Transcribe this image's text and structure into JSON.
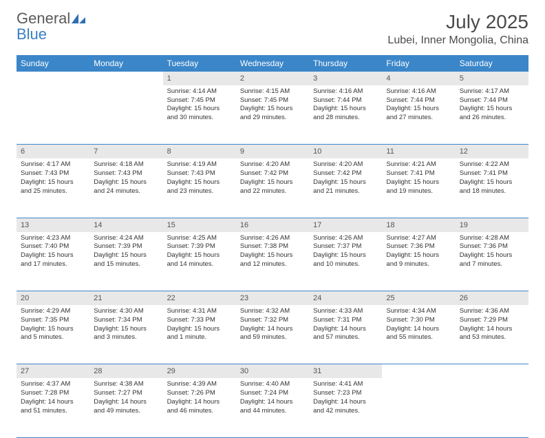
{
  "brand": {
    "part1": "General",
    "part2": "Blue"
  },
  "title": "July 2025",
  "location": "Lubei, Inner Mongolia, China",
  "colors": {
    "header_bg": "#3b86c9",
    "header_text": "#ffffff",
    "daynum_bg": "#e8e8e8",
    "border": "#3b86c9",
    "logo_gray": "#5a5a5a",
    "logo_blue": "#3b7fc4"
  },
  "weekdays": [
    "Sunday",
    "Monday",
    "Tuesday",
    "Wednesday",
    "Thursday",
    "Friday",
    "Saturday"
  ],
  "weeks": [
    {
      "nums": [
        "",
        "",
        "1",
        "2",
        "3",
        "4",
        "5"
      ],
      "cells": [
        null,
        null,
        {
          "sunrise": "Sunrise: 4:14 AM",
          "sunset": "Sunset: 7:45 PM",
          "day1": "Daylight: 15 hours",
          "day2": "and 30 minutes."
        },
        {
          "sunrise": "Sunrise: 4:15 AM",
          "sunset": "Sunset: 7:45 PM",
          "day1": "Daylight: 15 hours",
          "day2": "and 29 minutes."
        },
        {
          "sunrise": "Sunrise: 4:16 AM",
          "sunset": "Sunset: 7:44 PM",
          "day1": "Daylight: 15 hours",
          "day2": "and 28 minutes."
        },
        {
          "sunrise": "Sunrise: 4:16 AM",
          "sunset": "Sunset: 7:44 PM",
          "day1": "Daylight: 15 hours",
          "day2": "and 27 minutes."
        },
        {
          "sunrise": "Sunrise: 4:17 AM",
          "sunset": "Sunset: 7:44 PM",
          "day1": "Daylight: 15 hours",
          "day2": "and 26 minutes."
        }
      ]
    },
    {
      "nums": [
        "6",
        "7",
        "8",
        "9",
        "10",
        "11",
        "12"
      ],
      "cells": [
        {
          "sunrise": "Sunrise: 4:17 AM",
          "sunset": "Sunset: 7:43 PM",
          "day1": "Daylight: 15 hours",
          "day2": "and 25 minutes."
        },
        {
          "sunrise": "Sunrise: 4:18 AM",
          "sunset": "Sunset: 7:43 PM",
          "day1": "Daylight: 15 hours",
          "day2": "and 24 minutes."
        },
        {
          "sunrise": "Sunrise: 4:19 AM",
          "sunset": "Sunset: 7:43 PM",
          "day1": "Daylight: 15 hours",
          "day2": "and 23 minutes."
        },
        {
          "sunrise": "Sunrise: 4:20 AM",
          "sunset": "Sunset: 7:42 PM",
          "day1": "Daylight: 15 hours",
          "day2": "and 22 minutes."
        },
        {
          "sunrise": "Sunrise: 4:20 AM",
          "sunset": "Sunset: 7:42 PM",
          "day1": "Daylight: 15 hours",
          "day2": "and 21 minutes."
        },
        {
          "sunrise": "Sunrise: 4:21 AM",
          "sunset": "Sunset: 7:41 PM",
          "day1": "Daylight: 15 hours",
          "day2": "and 19 minutes."
        },
        {
          "sunrise": "Sunrise: 4:22 AM",
          "sunset": "Sunset: 7:41 PM",
          "day1": "Daylight: 15 hours",
          "day2": "and 18 minutes."
        }
      ]
    },
    {
      "nums": [
        "13",
        "14",
        "15",
        "16",
        "17",
        "18",
        "19"
      ],
      "cells": [
        {
          "sunrise": "Sunrise: 4:23 AM",
          "sunset": "Sunset: 7:40 PM",
          "day1": "Daylight: 15 hours",
          "day2": "and 17 minutes."
        },
        {
          "sunrise": "Sunrise: 4:24 AM",
          "sunset": "Sunset: 7:39 PM",
          "day1": "Daylight: 15 hours",
          "day2": "and 15 minutes."
        },
        {
          "sunrise": "Sunrise: 4:25 AM",
          "sunset": "Sunset: 7:39 PM",
          "day1": "Daylight: 15 hours",
          "day2": "and 14 minutes."
        },
        {
          "sunrise": "Sunrise: 4:26 AM",
          "sunset": "Sunset: 7:38 PM",
          "day1": "Daylight: 15 hours",
          "day2": "and 12 minutes."
        },
        {
          "sunrise": "Sunrise: 4:26 AM",
          "sunset": "Sunset: 7:37 PM",
          "day1": "Daylight: 15 hours",
          "day2": "and 10 minutes."
        },
        {
          "sunrise": "Sunrise: 4:27 AM",
          "sunset": "Sunset: 7:36 PM",
          "day1": "Daylight: 15 hours",
          "day2": "and 9 minutes."
        },
        {
          "sunrise": "Sunrise: 4:28 AM",
          "sunset": "Sunset: 7:36 PM",
          "day1": "Daylight: 15 hours",
          "day2": "and 7 minutes."
        }
      ]
    },
    {
      "nums": [
        "20",
        "21",
        "22",
        "23",
        "24",
        "25",
        "26"
      ],
      "cells": [
        {
          "sunrise": "Sunrise: 4:29 AM",
          "sunset": "Sunset: 7:35 PM",
          "day1": "Daylight: 15 hours",
          "day2": "and 5 minutes."
        },
        {
          "sunrise": "Sunrise: 4:30 AM",
          "sunset": "Sunset: 7:34 PM",
          "day1": "Daylight: 15 hours",
          "day2": "and 3 minutes."
        },
        {
          "sunrise": "Sunrise: 4:31 AM",
          "sunset": "Sunset: 7:33 PM",
          "day1": "Daylight: 15 hours",
          "day2": "and 1 minute."
        },
        {
          "sunrise": "Sunrise: 4:32 AM",
          "sunset": "Sunset: 7:32 PM",
          "day1": "Daylight: 14 hours",
          "day2": "and 59 minutes."
        },
        {
          "sunrise": "Sunrise: 4:33 AM",
          "sunset": "Sunset: 7:31 PM",
          "day1": "Daylight: 14 hours",
          "day2": "and 57 minutes."
        },
        {
          "sunrise": "Sunrise: 4:34 AM",
          "sunset": "Sunset: 7:30 PM",
          "day1": "Daylight: 14 hours",
          "day2": "and 55 minutes."
        },
        {
          "sunrise": "Sunrise: 4:36 AM",
          "sunset": "Sunset: 7:29 PM",
          "day1": "Daylight: 14 hours",
          "day2": "and 53 minutes."
        }
      ]
    },
    {
      "nums": [
        "27",
        "28",
        "29",
        "30",
        "31",
        "",
        ""
      ],
      "cells": [
        {
          "sunrise": "Sunrise: 4:37 AM",
          "sunset": "Sunset: 7:28 PM",
          "day1": "Daylight: 14 hours",
          "day2": "and 51 minutes."
        },
        {
          "sunrise": "Sunrise: 4:38 AM",
          "sunset": "Sunset: 7:27 PM",
          "day1": "Daylight: 14 hours",
          "day2": "and 49 minutes."
        },
        {
          "sunrise": "Sunrise: 4:39 AM",
          "sunset": "Sunset: 7:26 PM",
          "day1": "Daylight: 14 hours",
          "day2": "and 46 minutes."
        },
        {
          "sunrise": "Sunrise: 4:40 AM",
          "sunset": "Sunset: 7:24 PM",
          "day1": "Daylight: 14 hours",
          "day2": "and 44 minutes."
        },
        {
          "sunrise": "Sunrise: 4:41 AM",
          "sunset": "Sunset: 7:23 PM",
          "day1": "Daylight: 14 hours",
          "day2": "and 42 minutes."
        },
        null,
        null
      ]
    }
  ]
}
